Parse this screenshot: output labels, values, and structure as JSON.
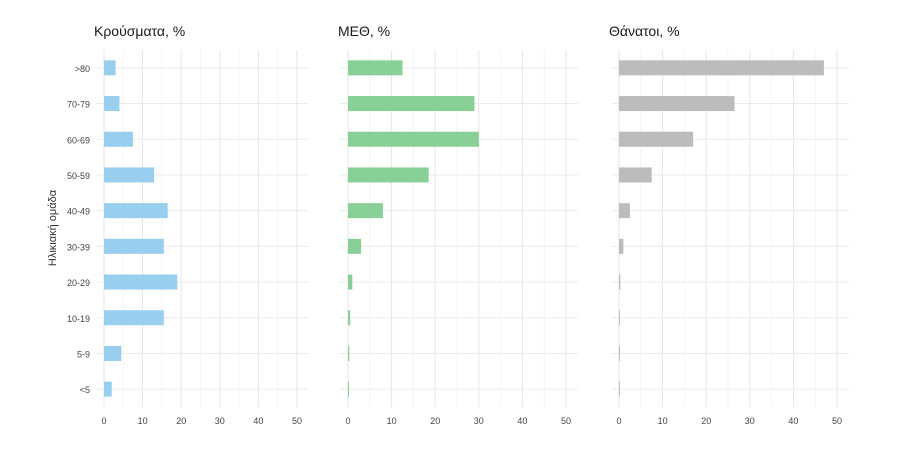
{
  "chart_data": {
    "type": "bar",
    "orientation": "horizontal",
    "ylabel": "Ηλικιακή ομάδα",
    "categories": [
      ">80",
      "70-79",
      "60-69",
      "50-59",
      "40-49",
      "30-39",
      "20-29",
      "10-19",
      "5-9",
      "<5"
    ],
    "x_ticks": [
      0,
      10,
      20,
      30,
      40,
      50
    ],
    "xlim": [
      0,
      50
    ],
    "grid": true,
    "legend": "none",
    "panels": [
      {
        "title": "Κρούσματα, %",
        "color": "#99cfee",
        "values": [
          3,
          4,
          7.5,
          13,
          16.5,
          15.5,
          19,
          15.5,
          4.5,
          2
        ]
      },
      {
        "title": "ΜΕΘ, %",
        "color": "#88d096",
        "values": [
          12.5,
          29,
          30,
          18.5,
          8,
          3,
          1,
          0.5,
          0.3,
          0.2
        ]
      },
      {
        "title": "Θάνατοι, %",
        "color": "#bcbcbc",
        "values": [
          47,
          26.5,
          17,
          7.5,
          2.5,
          1,
          0.3,
          0.2,
          0.1,
          0.1
        ]
      }
    ]
  }
}
